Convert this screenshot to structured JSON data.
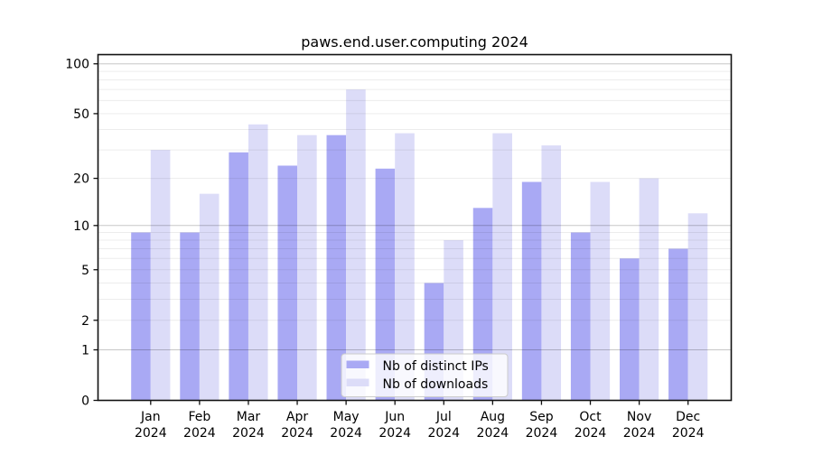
{
  "figure": {
    "background": "#ffffff"
  },
  "chart_data": {
    "type": "bar",
    "title": "paws.end.user.computing 2024",
    "categories": [
      "Jan",
      "Feb",
      "Mar",
      "Apr",
      "May",
      "Jun",
      "Jul",
      "Aug",
      "Sep",
      "Oct",
      "Nov",
      "Dec"
    ],
    "x_year_label": "2024",
    "series": [
      {
        "name": "Nb of distinct IPs",
        "color": "#a9a9f4",
        "values": [
          9,
          9,
          29,
          24,
          37,
          23,
          4,
          13,
          19,
          9,
          6,
          7
        ]
      },
      {
        "name": "Nb of downloads",
        "color": "#dcdcf8",
        "values": [
          30,
          16,
          43,
          37,
          70,
          38,
          8,
          38,
          32,
          19,
          20,
          12
        ]
      }
    ],
    "yscale": "log(value+1)",
    "ylim": [
      0,
      113
    ],
    "y_ticks": [
      {
        "label": "100",
        "value": 100
      },
      {
        "label": "50",
        "value": 50
      },
      {
        "label": "20",
        "value": 20
      },
      {
        "label": "10",
        "value": 10
      },
      {
        "label": "5",
        "value": 5
      },
      {
        "label": "2",
        "value": 2
      },
      {
        "label": "1",
        "value": 1
      },
      {
        "label": "0",
        "value": 0
      }
    ],
    "y_major_gridlines": [
      1,
      10,
      100
    ],
    "y_minor_gridlines": [
      2,
      3,
      4,
      5,
      6,
      7,
      8,
      9,
      20,
      30,
      40,
      50,
      60,
      70,
      80,
      90
    ],
    "grid": true,
    "legend_position": "lower center"
  }
}
